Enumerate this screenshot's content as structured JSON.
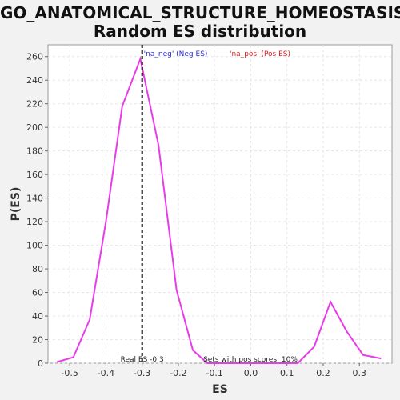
{
  "chart_data": {
    "type": "line",
    "title": "GO_ANATOMICAL_STRUCTURE_HOMEOSTASIS:",
    "subtitle": "Random ES distribution",
    "xlabel": "ES",
    "ylabel": "P(ES)",
    "xlim": [
      -0.56,
      0.39
    ],
    "ylim": [
      0,
      270
    ],
    "xticks": [
      -0.5,
      -0.4,
      -0.3,
      -0.2,
      -0.1,
      0.0,
      0.1,
      0.2,
      0.3
    ],
    "xtick_labels": [
      "-0.5",
      "-0.4",
      "-0.3",
      "-0.2",
      "-0.1",
      "0.0",
      "0.1",
      "0.2",
      "0.3"
    ],
    "yticks": [
      0,
      20,
      40,
      60,
      80,
      100,
      120,
      140,
      160,
      180,
      200,
      220,
      240,
      260
    ],
    "grid": true,
    "series": [
      {
        "name": "",
        "color": "#e83ce8",
        "x": [
          -0.535,
          -0.49,
          -0.445,
          -0.4,
          -0.355,
          -0.305,
          -0.255,
          -0.205,
          -0.16,
          -0.12,
          -0.08,
          -0.035,
          0.01,
          0.055,
          0.1,
          0.13,
          0.175,
          0.22,
          0.265,
          0.31,
          0.36
        ],
        "y": [
          1,
          5,
          37,
          120,
          218,
          258,
          185,
          62,
          11,
          0,
          0,
          0,
          0,
          0,
          0,
          0,
          14,
          52,
          27,
          7,
          4
        ]
      }
    ],
    "real_es": -0.3,
    "real_es_color": "#000000",
    "legend": [
      {
        "label": "'na_neg' (Neg ES)",
        "color": "#2b2bd6"
      },
      {
        "label": "'na_pos' (Pos ES)",
        "color": "#e02020"
      }
    ],
    "annotations": {
      "real_es_label": "Real ES -0.3",
      "pos_scores_label": "Sets with pos scores: 10%"
    },
    "colors": {
      "background": "#f2f2f2",
      "plot_background": "#ffffff",
      "grid": "#e6e6e6"
    }
  }
}
